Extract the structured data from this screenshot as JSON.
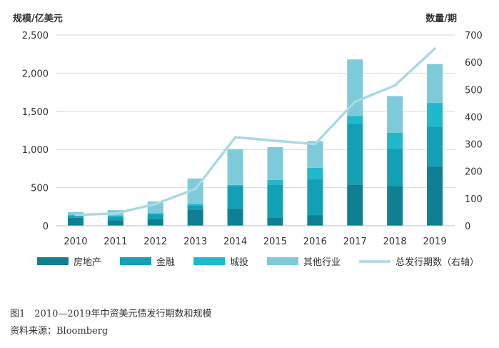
{
  "chart_data": {
    "type": "bar",
    "stacked": true,
    "left_axis_title": "规模/亿美元",
    "right_axis_title": "数量/期",
    "categories": [
      "2010",
      "2011",
      "2012",
      "2013",
      "2014",
      "2015",
      "2016",
      "2017",
      "2018",
      "2019"
    ],
    "ylim_left": [
      0,
      2500
    ],
    "yticks_left": [
      0,
      500,
      1000,
      1500,
      2000,
      2500
    ],
    "ytick_labels_left": [
      "0",
      "500",
      "1,000",
      "1,500",
      "2,000",
      "2,500"
    ],
    "ylim_right": [
      0,
      700
    ],
    "yticks_right": [
      0,
      100,
      200,
      300,
      400,
      500,
      600,
      700
    ],
    "ytick_labels_right": [
      "0",
      "100",
      "200",
      "300",
      "400",
      "500",
      "600",
      "700"
    ],
    "gridlines": true,
    "legend_position": "bottom",
    "series": [
      {
        "name": "房地产",
        "kind": "bar",
        "color": "#0f7f92",
        "values": [
          105,
          70,
          90,
          210,
          220,
          110,
          140,
          540,
          520,
          780
        ]
      },
      {
        "name": "金融",
        "kind": "bar",
        "color": "#13a0b4",
        "values": [
          30,
          50,
          60,
          60,
          300,
          430,
          470,
          800,
          490,
          520
        ]
      },
      {
        "name": "城投",
        "kind": "bar",
        "color": "#1fb8cc",
        "values": [
          5,
          15,
          15,
          15,
          15,
          60,
          150,
          100,
          210,
          310
        ]
      },
      {
        "name": "其他行业",
        "kind": "bar",
        "color": "#7ecad9",
        "values": [
          40,
          70,
          155,
          335,
          470,
          430,
          350,
          740,
          480,
          510
        ]
      },
      {
        "name": "总发行期数（右轴）",
        "kind": "line",
        "axis": "right",
        "color": "#a9d9e3",
        "values": [
          40,
          45,
          80,
          135,
          325,
          312,
          300,
          455,
          515,
          650
        ]
      }
    ]
  },
  "caption": {
    "title": "图1　2010—2019年中资美元债发行期数和规模",
    "source": "资料来源：Bloomberg"
  }
}
